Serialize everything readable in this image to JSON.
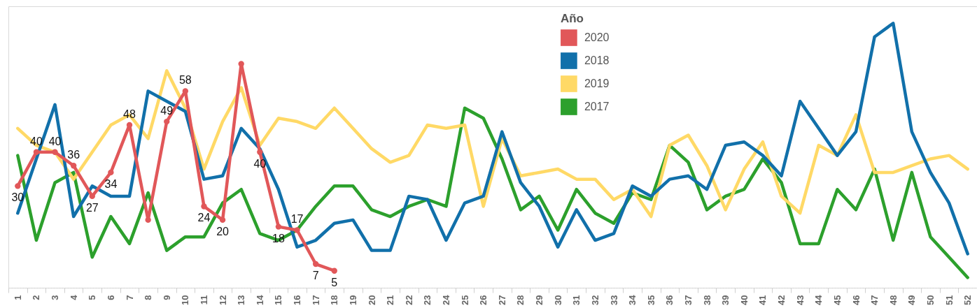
{
  "chart_data": {
    "type": "line",
    "legend_title": "Año",
    "legend": "top",
    "tick_labels": "x",
    "ylim": [
      0,
      83
    ],
    "categories": [
      "1",
      "2",
      "3",
      "4",
      "5",
      "6",
      "7",
      "8",
      "9",
      "10",
      "11",
      "12",
      "13",
      "14",
      "15",
      "16",
      "17",
      "18",
      "19",
      "20",
      "21",
      "22",
      "23",
      "24",
      "25",
      "26",
      "27",
      "28",
      "29",
      "30",
      "31",
      "32",
      "33",
      "34",
      "35",
      "36",
      "37",
      "38",
      "39",
      "40",
      "41",
      "42",
      "43",
      "44",
      "45",
      "46",
      "47",
      "48",
      "49",
      "50",
      "51",
      "52"
    ],
    "series": [
      {
        "name": "2020",
        "color": "#e15759",
        "marker": "circle",
        "values": [
          30,
          40,
          40,
          36,
          27,
          34,
          48,
          20,
          49,
          58,
          24,
          20,
          66,
          40,
          18,
          17,
          7,
          5,
          null,
          null,
          null,
          null,
          null,
          null,
          null,
          null,
          null,
          null,
          null,
          null,
          null,
          null,
          null,
          null,
          null,
          null,
          null,
          null,
          null,
          null,
          null,
          null,
          null,
          null,
          null,
          null,
          null,
          null,
          null,
          null,
          null,
          null
        ],
        "value_labels": [
          "30",
          "40",
          "40",
          "36",
          "27",
          "34",
          "48",
          null,
          "49",
          "58",
          "24",
          "20",
          null,
          "40",
          "18",
          "17",
          "7",
          "5",
          null,
          null,
          null,
          null,
          null,
          null,
          null,
          null,
          null,
          null,
          null,
          null,
          null,
          null,
          null,
          null,
          null,
          null,
          null,
          null,
          null,
          null,
          null,
          null,
          null,
          null,
          null,
          null,
          null,
          null,
          null,
          null,
          null,
          null
        ]
      },
      {
        "name": "2018",
        "color": "#1170aa",
        "values": [
          22,
          38,
          54,
          21,
          30,
          27,
          27,
          58,
          55,
          52,
          32,
          33,
          47,
          41,
          29,
          12,
          14,
          19,
          20,
          11,
          11,
          27,
          26,
          14,
          25,
          27,
          46,
          31,
          24,
          12,
          23,
          14,
          16,
          30,
          27,
          32,
          33,
          29,
          42,
          43,
          39,
          33,
          55,
          47,
          39,
          46,
          74,
          78,
          46,
          34,
          25,
          10
        ]
      },
      {
        "name": "2019",
        "color": "#ffd966",
        "values": [
          47,
          42,
          40,
          32,
          40,
          48,
          51,
          44,
          64,
          53,
          35,
          49,
          59,
          42,
          50,
          49,
          47,
          53,
          47,
          41,
          37,
          39,
          48,
          47,
          48,
          24,
          44,
          33,
          34,
          35,
          32,
          32,
          26,
          29,
          21,
          42,
          45,
          36,
          23,
          35,
          43,
          27,
          22,
          42,
          39,
          51,
          34,
          34,
          36,
          38,
          39,
          35
        ]
      },
      {
        "name": "2017",
        "color": "#2ca02c",
        "values": [
          39,
          14,
          31,
          34,
          9,
          21,
          13,
          28,
          11,
          15,
          15,
          25,
          29,
          16,
          14,
          17,
          24,
          30,
          30,
          23,
          21,
          24,
          26,
          24,
          53,
          50,
          38,
          23,
          27,
          17,
          29,
          22,
          19,
          28,
          26,
          42,
          37,
          23,
          27,
          29,
          38,
          31,
          13,
          13,
          29,
          23,
          35,
          14,
          34,
          15,
          9,
          3
        ]
      }
    ]
  }
}
